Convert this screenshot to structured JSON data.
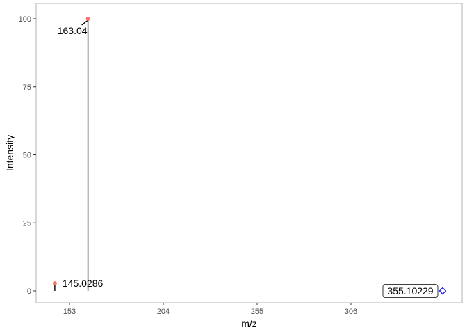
{
  "chart_data": {
    "type": "scatter",
    "title": "",
    "xlabel": "m/z",
    "ylabel": "Intensity",
    "xlim": [
      142,
      354
    ],
    "ylim": [
      0,
      100
    ],
    "x_ticks": [
      153,
      204,
      255,
      306
    ],
    "y_ticks": [
      0,
      25,
      50,
      75,
      100
    ],
    "grid": false,
    "legend": "none",
    "peaks": [
      {
        "mz": 145.0286,
        "intensity": 2.8,
        "label": "145.0286"
      },
      {
        "mz": 163.04,
        "intensity": 100,
        "label": "163.04"
      }
    ],
    "precursor": {
      "mz": 355.10229,
      "intensity": 0,
      "label": "355.10229"
    },
    "colors": {
      "peak_point": "#f8766d",
      "stick": "#000000",
      "precursor_marker": "#0000ff",
      "panel_border": "#b3b3b3"
    }
  }
}
